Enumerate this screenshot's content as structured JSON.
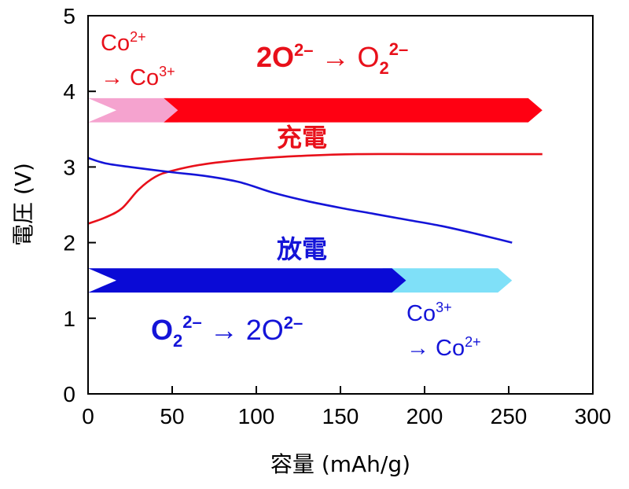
{
  "chart_data": {
    "type": "line",
    "xlabel": "容量 (mAh/g)",
    "ylabel": "電圧 (V)",
    "xlim": [
      0,
      300
    ],
    "ylim": [
      0,
      5
    ],
    "xticks": [
      "0",
      "50",
      "100",
      "150",
      "200",
      "250",
      "300"
    ],
    "yticks": [
      "0",
      "1",
      "2",
      "3",
      "4",
      "5"
    ],
    "grid": false,
    "series": [
      {
        "name": "充電",
        "color": "#e8101a",
        "points": [
          [
            0,
            2.25
          ],
          [
            10,
            2.33
          ],
          [
            20,
            2.45
          ],
          [
            30,
            2.7
          ],
          [
            40,
            2.87
          ],
          [
            50,
            2.95
          ],
          [
            70,
            3.04
          ],
          [
            100,
            3.11
          ],
          [
            130,
            3.15
          ],
          [
            160,
            3.17
          ],
          [
            200,
            3.17
          ],
          [
            270,
            3.17
          ]
        ]
      },
      {
        "name": "放電",
        "color": "#1414d8",
        "points": [
          [
            0,
            3.12
          ],
          [
            10,
            3.05
          ],
          [
            25,
            3.0
          ],
          [
            50,
            2.93
          ],
          [
            70,
            2.88
          ],
          [
            90,
            2.8
          ],
          [
            110,
            2.66
          ],
          [
            130,
            2.55
          ],
          [
            150,
            2.46
          ],
          [
            170,
            2.38
          ],
          [
            190,
            2.3
          ],
          [
            210,
            2.22
          ],
          [
            230,
            2.12
          ],
          [
            252,
            2.0
          ]
        ]
      }
    ],
    "bands": [
      {
        "y_center": 3.75,
        "y_half": 0.16,
        "segments": [
          {
            "x0": 0,
            "x1": 62,
            "color": "#f5a3cf"
          },
          {
            "x0": 45,
            "x1": 270,
            "color": "#ff0012"
          }
        ]
      },
      {
        "y_center": 1.5,
        "y_half": 0.16,
        "segments": [
          {
            "x0": 175,
            "x1": 252,
            "color": "#7fe0f8"
          },
          {
            "x0": 0,
            "x1": 189,
            "color": "#0a0ad6"
          }
        ]
      }
    ],
    "annotations": {
      "co_charge_line1": "Co",
      "co_charge_sup1": "2+",
      "co_charge_line2": "→ Co",
      "co_charge_sup2": "3+",
      "oxy_charge_a": "2O",
      "oxy_charge_sup_a": "2–",
      "oxy_charge_arrow": " → O",
      "oxy_charge_sub": "2",
      "oxy_charge_sup_b": "2–",
      "charge_label": "充電",
      "discharge_label": "放電",
      "oxy_discharge_a": "O",
      "oxy_discharge_sub": "2",
      "oxy_discharge_sup_a": "2–",
      "oxy_discharge_arrow": " → 2O",
      "oxy_discharge_sup_b": "2–",
      "co_discharge_line1": "Co",
      "co_discharge_sup1": "3+",
      "co_discharge_line2": "→ Co",
      "co_discharge_sup2": "2+"
    },
    "colors": {
      "charge": "#e8101a",
      "discharge": "#1414d8"
    }
  }
}
